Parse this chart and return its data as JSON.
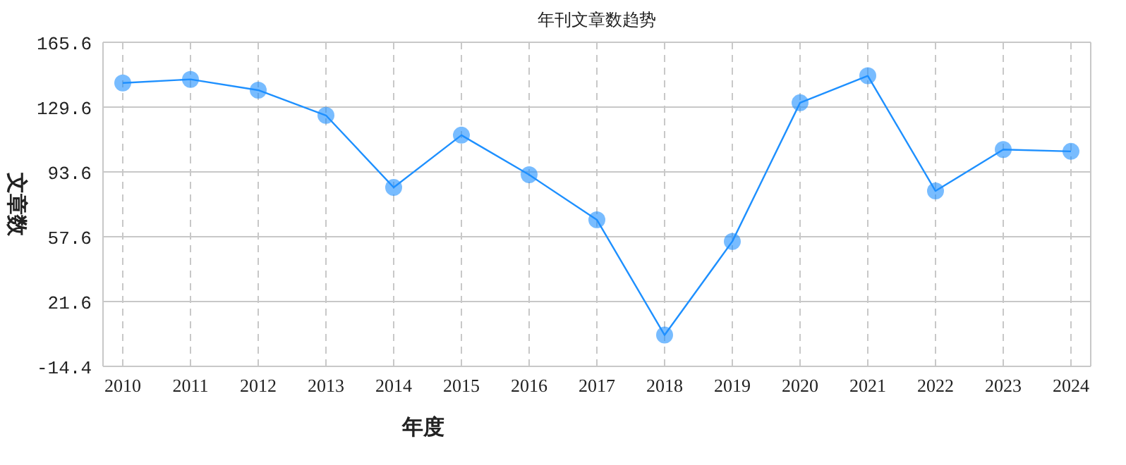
{
  "chart_data": {
    "type": "line",
    "title": "年刊文章数趋势",
    "xlabel": "年度",
    "ylabel": "文章数",
    "categories": [
      "2010",
      "2011",
      "2012",
      "2013",
      "2014",
      "2015",
      "2016",
      "2017",
      "2018",
      "2019",
      "2020",
      "2021",
      "2022",
      "2023",
      "2024"
    ],
    "series": [
      {
        "color": "#1e90ff",
        "values": [
          143,
          145,
          139,
          125,
          85,
          114,
          92,
          67,
          3,
          55,
          132,
          147,
          83,
          106,
          105
        ]
      }
    ],
    "marker": "circle",
    "ylim": [
      -14.4,
      165.6
    ],
    "yticks": [
      -14.4,
      21.6,
      57.6,
      93.6,
      129.6,
      165.6
    ],
    "grid": true
  }
}
